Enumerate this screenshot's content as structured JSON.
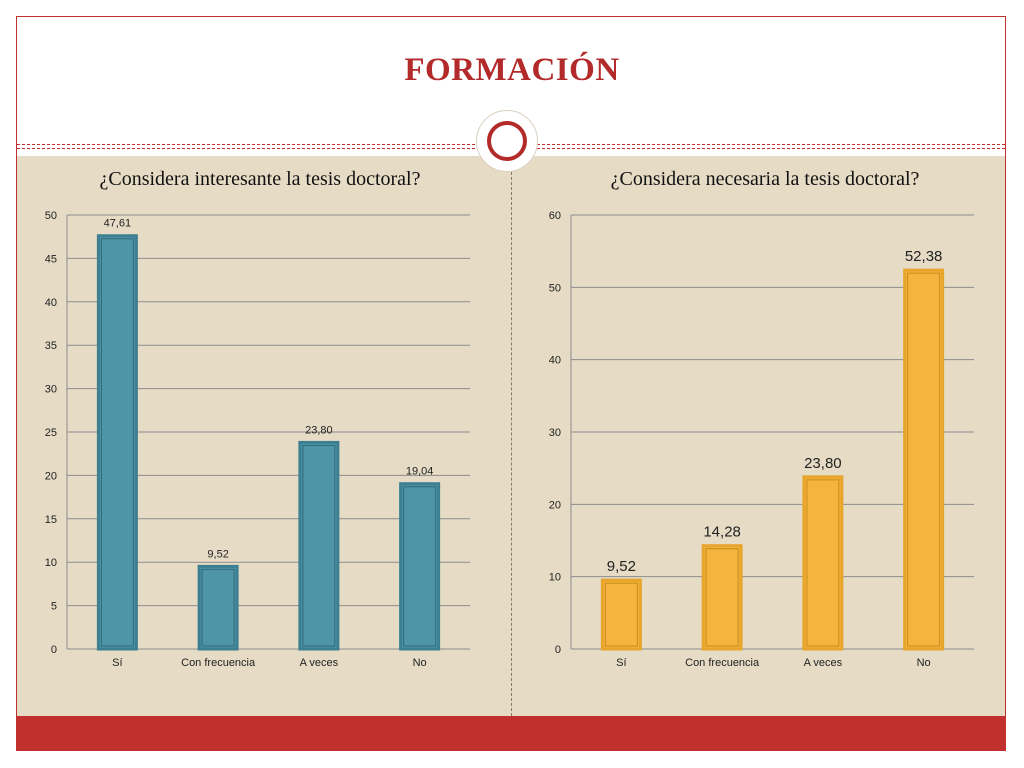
{
  "slide": {
    "title": "FORMACIÓN",
    "accent_color": "#b32a2a",
    "footer_color": "#c2302e",
    "content_bg": "#e6dcc6"
  },
  "chart_data": [
    {
      "type": "bar",
      "title": "¿Considera interesante la tesis doctoral?",
      "categories": [
        "Sí",
        "Con frecuencia",
        "A veces",
        "No"
      ],
      "values": [
        47.61,
        9.52,
        23.8,
        19.04
      ],
      "value_labels": [
        "47,61",
        "9,52",
        "23,80",
        "19,04"
      ],
      "ylim": [
        0,
        50
      ],
      "ytick_step": 5,
      "grid": true,
      "color": "#4e95a8"
    },
    {
      "type": "bar",
      "title": "¿Considera necesaria la tesis doctoral?",
      "categories": [
        "Sí",
        "Con frecuencia",
        "A veces",
        "No"
      ],
      "values": [
        9.52,
        14.28,
        23.8,
        52.38
      ],
      "value_labels": [
        "9,52",
        "14,28",
        "23,80",
        "52,38"
      ],
      "ylim": [
        0,
        60
      ],
      "ytick_step": 10,
      "grid": true,
      "color": "#f4b43d"
    }
  ]
}
